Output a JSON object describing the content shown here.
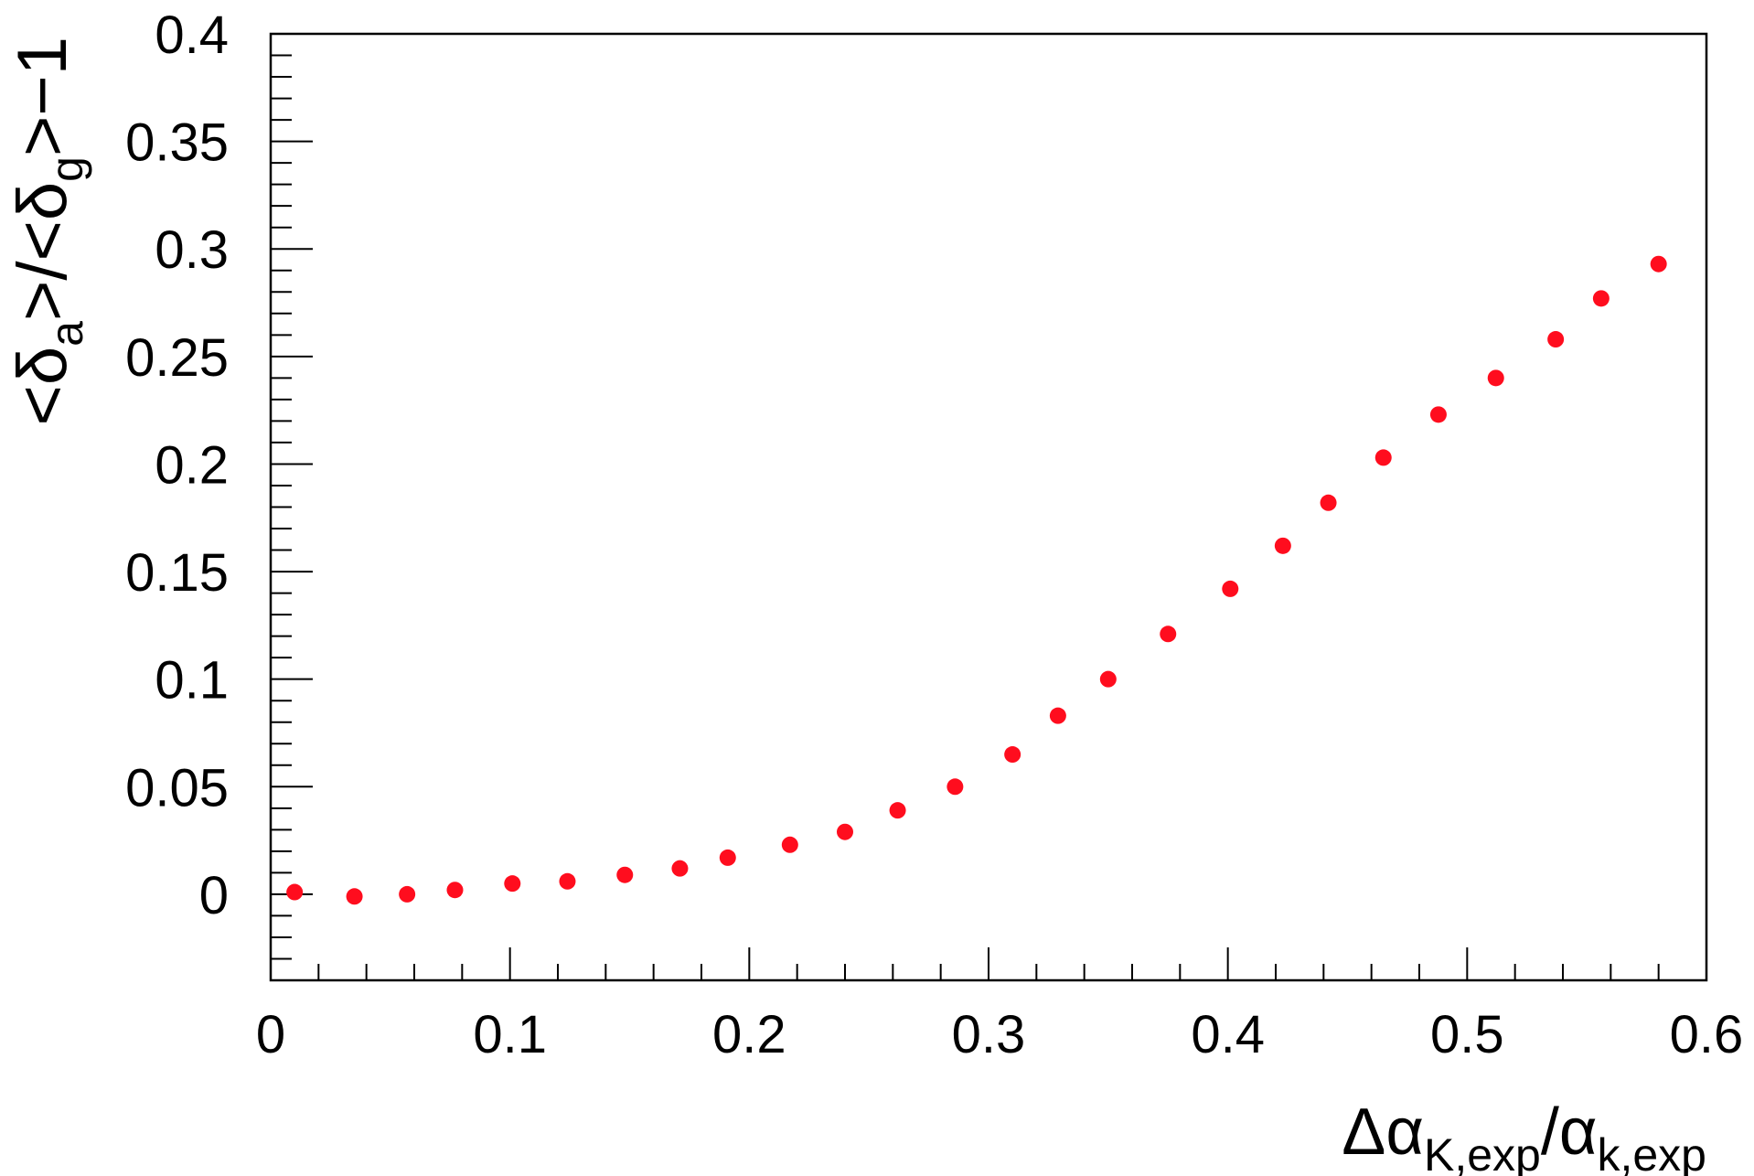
{
  "chart_data": {
    "type": "scatter",
    "title": "",
    "xlabel": {
      "parts": [
        {
          "text": "Δα",
          "style": "normal"
        },
        {
          "text": "K,exp",
          "style": "sub"
        },
        {
          "text": "/α",
          "style": "normal"
        },
        {
          "text": "k,exp",
          "style": "sub"
        }
      ]
    },
    "ylabel": {
      "parts": [
        {
          "text": "<δ",
          "style": "normal"
        },
        {
          "text": "a",
          "style": "sub"
        },
        {
          "text": ">/<δ",
          "style": "normal"
        },
        {
          "text": "g",
          "style": "sub"
        },
        {
          "text": ">−1",
          "style": "normal"
        }
      ]
    },
    "xlim": [
      0,
      0.6
    ],
    "ylim": [
      -0.04,
      0.4
    ],
    "x_ticks": [
      "0",
      "0.1",
      "0.2",
      "0.3",
      "0.4",
      "0.5",
      "0.6"
    ],
    "x_tick_values": [
      0,
      0.1,
      0.2,
      0.3,
      0.4,
      0.5,
      0.6
    ],
    "y_ticks": [
      "0",
      "0.05",
      "0.1",
      "0.15",
      "0.2",
      "0.25",
      "0.3",
      "0.35",
      "0.4"
    ],
    "y_tick_values": [
      0,
      0.05,
      0.1,
      0.15,
      0.2,
      0.25,
      0.3,
      0.35,
      0.4
    ],
    "grid": false,
    "marker_color": "#ff0d1e",
    "series": [
      {
        "x": [
          0.01,
          0.035,
          0.057,
          0.077,
          0.101,
          0.124,
          0.148,
          0.171,
          0.191,
          0.217,
          0.24,
          0.262,
          0.286,
          0.31,
          0.329,
          0.35,
          0.375,
          0.401,
          0.423,
          0.442,
          0.465,
          0.488,
          0.512,
          0.537,
          0.556,
          0.58
        ],
        "y": [
          0.001,
          -0.001,
          0.0,
          0.002,
          0.005,
          0.006,
          0.009,
          0.012,
          0.017,
          0.023,
          0.029,
          0.039,
          0.05,
          0.065,
          0.083,
          0.1,
          0.121,
          0.142,
          0.162,
          0.182,
          0.203,
          0.223,
          0.24,
          0.258,
          0.277,
          0.293
        ]
      }
    ]
  }
}
